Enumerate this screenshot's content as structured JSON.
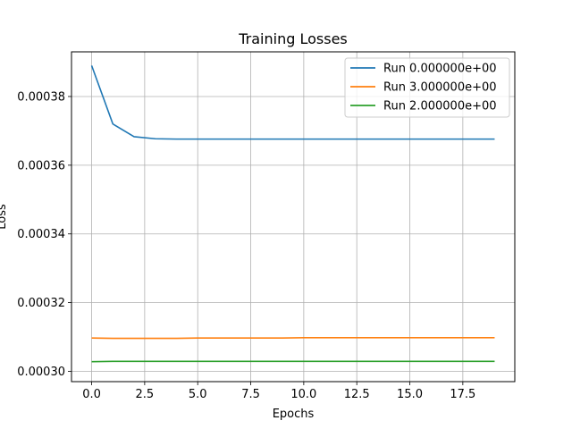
{
  "chart_data": {
    "type": "line",
    "title": "Training Losses",
    "xlabel": "Epochs",
    "ylabel": "Loss",
    "xlim": [
      -0.95,
      19.95
    ],
    "ylim": [
      0.000297,
      0.000393
    ],
    "grid": true,
    "legend_position": "top-right",
    "x": [
      0,
      1,
      2,
      3,
      4,
      5,
      6,
      7,
      8,
      9,
      10,
      11,
      12,
      13,
      14,
      15,
      16,
      17,
      18,
      19
    ],
    "x_ticks": [
      0.0,
      2.5,
      5.0,
      7.5,
      10.0,
      12.5,
      15.0,
      17.5
    ],
    "x_tick_labels": [
      "0.0",
      "2.5",
      "5.0",
      "7.5",
      "10.0",
      "12.5",
      "15.0",
      "17.5"
    ],
    "y_ticks": [
      0.0003,
      0.00032,
      0.00034,
      0.00036,
      0.00038
    ],
    "y_tick_labels": [
      "0.00030",
      "0.00032",
      "0.00034",
      "0.00036",
      "0.00038"
    ],
    "series": [
      {
        "name": "Run 0.000000e+00",
        "color": "#1f77b4",
        "values": [
          0.000389,
          0.000372,
          0.0003683,
          0.0003677,
          0.0003676,
          0.0003676,
          0.0003676,
          0.0003676,
          0.0003676,
          0.0003676,
          0.0003676,
          0.0003676,
          0.0003676,
          0.0003676,
          0.0003676,
          0.0003676,
          0.0003676,
          0.0003676,
          0.0003676,
          0.0003676
        ]
      },
      {
        "name": "Run 3.000000e+00",
        "color": "#ff7f0e",
        "values": [
          0.0003097,
          0.0003096,
          0.0003096,
          0.0003096,
          0.0003096,
          0.0003097,
          0.0003097,
          0.0003097,
          0.0003097,
          0.0003097,
          0.0003098,
          0.0003098,
          0.0003098,
          0.0003098,
          0.0003098,
          0.0003098,
          0.0003098,
          0.0003098,
          0.0003098,
          0.0003098
        ]
      },
      {
        "name": "Run 2.000000e+00",
        "color": "#2ca02c",
        "values": [
          0.0003028,
          0.0003029,
          0.0003029,
          0.0003029,
          0.0003029,
          0.0003029,
          0.0003029,
          0.0003029,
          0.0003029,
          0.0003029,
          0.0003029,
          0.0003029,
          0.0003029,
          0.0003029,
          0.0003029,
          0.0003029,
          0.0003029,
          0.0003029,
          0.0003029,
          0.0003029
        ]
      }
    ]
  }
}
